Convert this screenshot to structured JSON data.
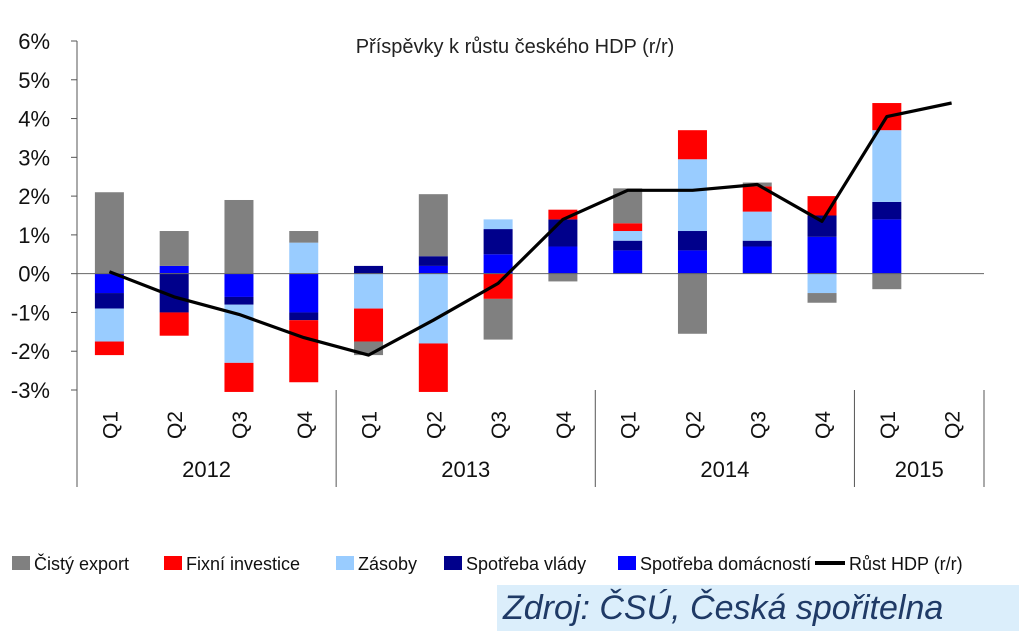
{
  "chart_data": {
    "type": "bar",
    "stacked": true,
    "title": "Příspěvky k růstu českého HDP (r/r)",
    "xlabel": "",
    "ylabel": "",
    "ylim": [
      -3,
      6
    ],
    "yticks": [
      -3,
      -2,
      -1,
      0,
      1,
      2,
      3,
      4,
      5,
      6
    ],
    "ytick_labels": [
      "-3%",
      "-2%",
      "-1%",
      "0%",
      "1%",
      "2%",
      "3%",
      "4%",
      "5%",
      "6%"
    ],
    "categories": [
      "Q1",
      "Q2",
      "Q3",
      "Q4",
      "Q1",
      "Q2",
      "Q3",
      "Q4",
      "Q1",
      "Q2",
      "Q3",
      "Q4",
      "Q1",
      "Q2"
    ],
    "year_groups": [
      {
        "label": "2012",
        "count": 4
      },
      {
        "label": "2013",
        "count": 4
      },
      {
        "label": "2014",
        "count": 4
      },
      {
        "label": "2015",
        "count": 2
      }
    ],
    "legend_position": "bottom",
    "series": [
      {
        "name": "Spotřeba domácností",
        "kind": "bar",
        "color": "#0000ff",
        "values": [
          -0.5,
          0.2,
          -0.6,
          -1.0,
          0.0,
          0.2,
          0.5,
          0.7,
          0.6,
          0.6,
          0.7,
          0.95,
          1.4,
          null
        ]
      },
      {
        "name": "Spotřeba vlády",
        "kind": "bar",
        "color": "#00008b",
        "values": [
          -0.4,
          -1.0,
          -0.2,
          -0.2,
          0.2,
          0.25,
          0.65,
          0.7,
          0.25,
          0.5,
          0.15,
          0.55,
          0.45,
          null
        ]
      },
      {
        "name": "Zásoby",
        "kind": "bar",
        "color": "#99ccff",
        "values": [
          -0.85,
          0.0,
          -1.5,
          0.8,
          -0.9,
          -1.8,
          0.25,
          0.0,
          0.25,
          1.85,
          0.75,
          -0.5,
          1.85,
          null
        ]
      },
      {
        "name": "Fixní investice",
        "kind": "bar",
        "color": "#ff0000",
        "values": [
          -0.35,
          -0.6,
          -0.75,
          -1.6,
          -0.85,
          -1.25,
          -0.65,
          0.25,
          0.2,
          0.75,
          0.65,
          0.5,
          0.7,
          null
        ]
      },
      {
        "name": "Čistý export",
        "kind": "bar",
        "color": "#808080",
        "values": [
          2.1,
          0.9,
          1.9,
          0.3,
          -0.35,
          1.6,
          -1.05,
          -0.2,
          0.9,
          -1.55,
          0.1,
          -0.25,
          -0.4,
          null
        ]
      },
      {
        "name": "Růst HDP (r/r)",
        "kind": "line",
        "color": "#000000",
        "values": [
          0.05,
          -0.6,
          -1.05,
          -1.65,
          -2.1,
          -1.2,
          -0.25,
          1.4,
          2.15,
          2.15,
          2.3,
          1.35,
          4.05,
          4.4
        ]
      }
    ],
    "legend_order": [
      "Čistý export",
      "Fixní investice",
      "Zásoby",
      "Spotřeba vlády",
      "Spotřeba domácností",
      "Růst HDP (r/r)"
    ]
  },
  "source": "Zdroj: ČSÚ, Česká spořitelna"
}
